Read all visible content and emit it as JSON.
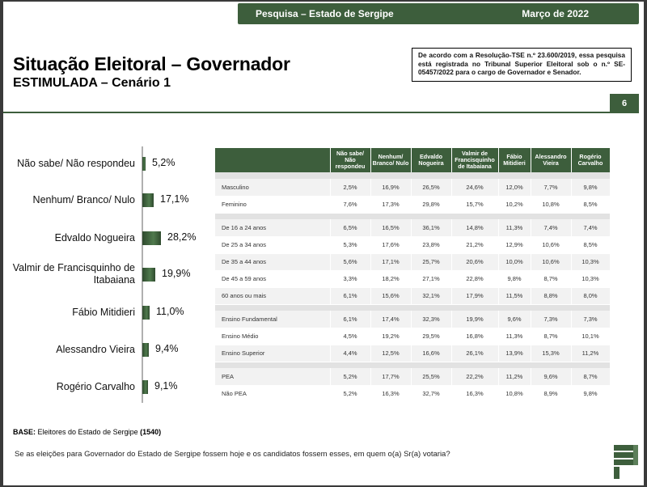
{
  "header": {
    "title": "Pesquisa – Estado de Sergipe",
    "date": "Março de 2022"
  },
  "title": "Situação Eleitoral – Governador",
  "subtitle": "ESTIMULADA – Cenário 1",
  "registration_note": "De acordo com a Resolução-TSE n.º 23.600/2019, essa pesquisa está registrada no Tribunal Superior Eleitoral sob o n.º SE-05457/2022 para o cargo de Governador e Senador.",
  "page_number": "6",
  "chart_data": [
    {
      "type": "bar",
      "orientation": "horizontal",
      "categories": [
        "Não sabe/ Não respondeu",
        "Nenhum/ Branco/ Nulo",
        "Edvaldo Nogueira",
        "Valmir de Francisquinho de Itabaiana",
        "Fábio Mitidieri",
        "Alessandro Vieira",
        "Rogério Carvalho"
      ],
      "values": [
        5.2,
        17.1,
        28.2,
        19.9,
        11.0,
        9.4,
        9.1
      ],
      "value_labels": [
        "5,2%",
        "17,1%",
        "28,2%",
        "19,9%",
        "11,0%",
        "9,4%",
        "9,1%"
      ],
      "xlim": [
        0,
        30
      ],
      "grid": false
    },
    {
      "type": "table",
      "columns": [
        "",
        "Não sabe/ Não respondeu",
        "Nenhum/ Branco/ Nulo",
        "Edvaldo Nogueira",
        "Valmir de Francisquinho de Itabaiana",
        "Fábio Mitidieri",
        "Alessandro Vieira",
        "Rogério Carvalho"
      ],
      "groups": [
        {
          "rows": [
            {
              "segment": "Masculino",
              "values": [
                "2,5%",
                "16,9%",
                "26,5%",
                "24,6%",
                "12,0%",
                "7,7%",
                "9,8%"
              ]
            },
            {
              "segment": "Feminino",
              "values": [
                "7,6%",
                "17,3%",
                "29,8%",
                "15,7%",
                "10,2%",
                "10,8%",
                "8,5%"
              ]
            }
          ]
        },
        {
          "rows": [
            {
              "segment": "De 16 a 24 anos",
              "values": [
                "6,5%",
                "16,5%",
                "36,1%",
                "14,8%",
                "11,3%",
                "7,4%",
                "7,4%"
              ]
            },
            {
              "segment": "De 25 a 34 anos",
              "values": [
                "5,3%",
                "17,6%",
                "23,8%",
                "21,2%",
                "12,9%",
                "10,6%",
                "8,5%"
              ]
            },
            {
              "segment": "De 35 a 44 anos",
              "values": [
                "5,6%",
                "17,1%",
                "25,7%",
                "20,6%",
                "10,0%",
                "10,6%",
                "10,3%"
              ]
            },
            {
              "segment": "De 45 a 59 anos",
              "values": [
                "3,3%",
                "18,2%",
                "27,1%",
                "22,8%",
                "9,8%",
                "8,7%",
                "10,3%"
              ]
            },
            {
              "segment": "60 anos ou mais",
              "values": [
                "6,1%",
                "15,6%",
                "32,1%",
                "17,9%",
                "11,5%",
                "8,8%",
                "8,0%"
              ]
            }
          ]
        },
        {
          "rows": [
            {
              "segment": "Ensino Fundamental",
              "values": [
                "6,1%",
                "17,4%",
                "32,3%",
                "19,9%",
                "9,6%",
                "7,3%",
                "7,3%"
              ]
            },
            {
              "segment": "Ensino Médio",
              "values": [
                "4,5%",
                "19,2%",
                "29,5%",
                "16,8%",
                "11,3%",
                "8,7%",
                "10,1%"
              ]
            },
            {
              "segment": "Ensino Superior",
              "values": [
                "4,4%",
                "12,5%",
                "16,6%",
                "26,1%",
                "13,9%",
                "15,3%",
                "11,2%"
              ]
            }
          ]
        },
        {
          "rows": [
            {
              "segment": "PEA",
              "values": [
                "5,2%",
                "17,7%",
                "25,5%",
                "22,2%",
                "11,2%",
                "9,6%",
                "8,7%"
              ]
            },
            {
              "segment": "Não PEA",
              "values": [
                "5,2%",
                "16,3%",
                "32,7%",
                "16,3%",
                "10,8%",
                "8,9%",
                "9,8%"
              ]
            }
          ]
        }
      ]
    }
  ],
  "base_note": {
    "label": "BASE:",
    "text": " Eleitores do Estado de Sergipe ",
    "count": "(1540)"
  },
  "question": "Se as eleições para Governador do Estado de Sergipe fossem hoje e os candidatos fossem esses, em quem o(a) Sr(a) votaria?",
  "colors": {
    "brand": "#3d5e3c",
    "bar": "#4f7a4d"
  },
  "logo_icon": "stacked-p-logo-icon"
}
